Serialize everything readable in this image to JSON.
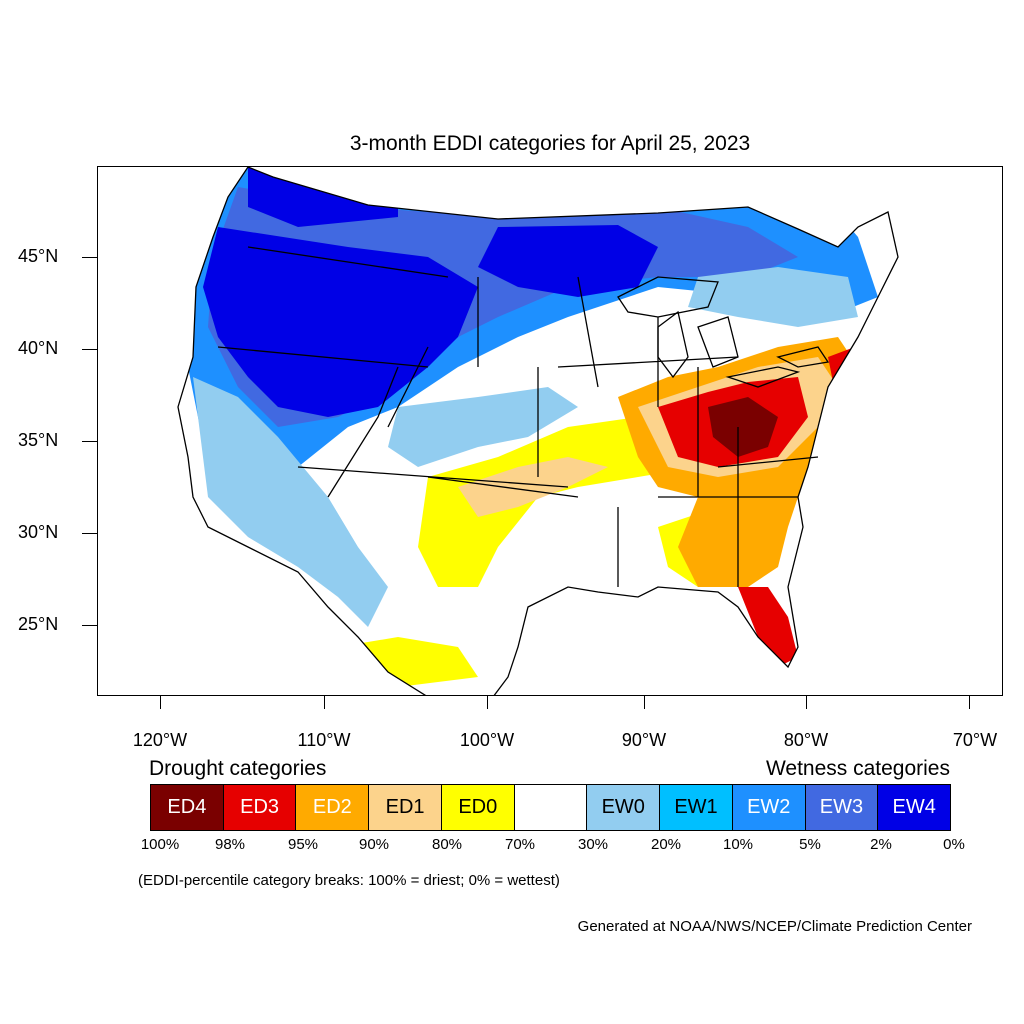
{
  "title": "3-month EDDI categories for April 25, 2023",
  "axes": {
    "lat_labels": [
      "45°N",
      "40°N",
      "35°N",
      "30°N",
      "25°N"
    ],
    "lon_labels": [
      "120°W",
      "110°W",
      "100°W",
      "90°W",
      "80°W",
      "70°W"
    ]
  },
  "legend": {
    "drought_heading": "Drought categories",
    "wetness_heading": "Wetness categories",
    "categories": [
      {
        "label": "ED4",
        "color": "#7a0000",
        "text_color": "#ffffff"
      },
      {
        "label": "ED3",
        "color": "#e60000",
        "text_color": "#ffffff"
      },
      {
        "label": "ED2",
        "color": "#ffaa00",
        "text_color": "#ffffff"
      },
      {
        "label": "ED1",
        "color": "#fcd38c",
        "text_color": "#000000"
      },
      {
        "label": "ED0",
        "color": "#ffff00",
        "text_color": "#000000"
      },
      {
        "label": "",
        "color": "#ffffff",
        "text_color": "#000000"
      },
      {
        "label": "EW0",
        "color": "#92cdf0",
        "text_color": "#000000"
      },
      {
        "label": "EW1",
        "color": "#00bfff",
        "text_color": "#000000"
      },
      {
        "label": "EW2",
        "color": "#1e90ff",
        "text_color": "#ffffff"
      },
      {
        "label": "EW3",
        "color": "#4169e1",
        "text_color": "#ffffff"
      },
      {
        "label": "EW4",
        "color": "#0000e6",
        "text_color": "#ffffff"
      }
    ],
    "percentiles": [
      "100%",
      "98%",
      "95%",
      "90%",
      "80%",
      "70%",
      "30%",
      "20%",
      "10%",
      "5%",
      "2%",
      "0%"
    ]
  },
  "note": "(EDDI-percentile category breaks: 100% = driest; 0% = wettest)",
  "credit": "Generated at NOAA/NWS/NCEP/Climate Prediction Center"
}
